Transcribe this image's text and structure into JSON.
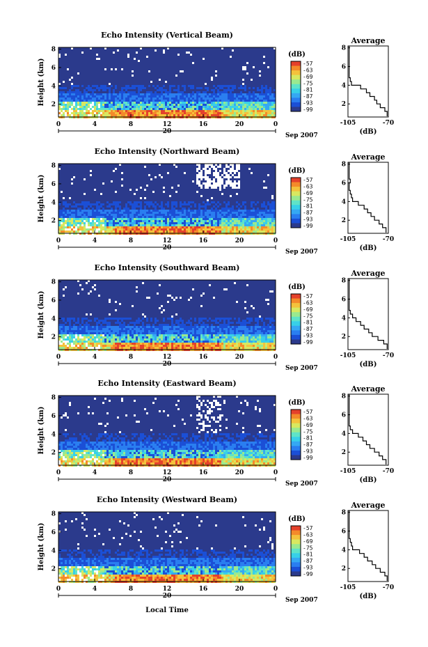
{
  "colors": {
    "background": "#2b3a8c",
    "scale": [
      "#2b3a8c",
      "#1b4fd6",
      "#2a7ef0",
      "#35a8f3",
      "#38d0e8",
      "#5fe3c8",
      "#9ae98f",
      "#d8e860",
      "#f4c23c",
      "#f48a2a",
      "#e4412b"
    ]
  },
  "x_axis": {
    "label": "Local Time",
    "ticks": [
      "0",
      "4",
      "8",
      "12",
      "16",
      "20",
      "0"
    ],
    "day_label": "20",
    "date_label": "Sep 2007"
  },
  "colorbar": {
    "unit": "(dB)",
    "labels": [
      "-57",
      "-63",
      "-69",
      "-75",
      "-81",
      "-87",
      "-93",
      "-99"
    ]
  },
  "profile": {
    "title": "Average",
    "xlabel": "(dB)",
    "xticks": [
      "-105",
      "-70"
    ],
    "yticks": [
      "2",
      "4",
      "6",
      "8"
    ]
  },
  "chart_data": [
    {
      "type": "heatmap",
      "title": "Echo Intensity (Vertical Beam)",
      "ylabel": "Height (km)",
      "ylim": [
        0.6,
        8.2
      ],
      "yticks": [
        2,
        4,
        6,
        8
      ],
      "xlim": [
        0,
        24
      ],
      "profile": {
        "type": "line",
        "xlim": [
          -105,
          -70
        ],
        "y": [
          0.8,
          1.2,
          1.6,
          2.0,
          2.4,
          2.8,
          3.2,
          3.6,
          4.0,
          4.4,
          4.8,
          5.2,
          5.6,
          6.0,
          6.4,
          6.8,
          7.2
        ],
        "x": [
          -71,
          -73,
          -77,
          -80,
          -82,
          -86,
          -89,
          -94,
          -102,
          -103,
          -104,
          -104,
          -104,
          -104,
          -104,
          -104,
          -104
        ]
      }
    },
    {
      "type": "heatmap",
      "title": "Echo Intensity (Northward Beam)",
      "ylabel": "Height (km)",
      "ylim": [
        0.6,
        8.2
      ],
      "yticks": [
        2,
        4,
        6,
        8
      ],
      "xlim": [
        0,
        24
      ],
      "profile": {
        "type": "line",
        "xlim": [
          -105,
          -70
        ],
        "y": [
          0.8,
          1.2,
          1.6,
          2.0,
          2.4,
          2.8,
          3.2,
          3.6,
          4.0,
          4.4,
          4.8,
          5.2,
          5.6,
          6.0,
          6.4,
          6.8,
          7.2
        ],
        "x": [
          -72,
          -75,
          -78,
          -82,
          -85,
          -88,
          -91,
          -96,
          -101,
          -102,
          -103,
          -104,
          -104,
          -103,
          -104,
          -104,
          -104
        ]
      }
    },
    {
      "type": "heatmap",
      "title": "Echo Intensity (Southward Beam)",
      "ylabel": "Height (km)",
      "ylim": [
        0.6,
        8.2
      ],
      "yticks": [
        2,
        4,
        6,
        8
      ],
      "xlim": [
        0,
        24
      ],
      "profile": {
        "type": "line",
        "xlim": [
          -105,
          -70
        ],
        "y": [
          0.8,
          1.2,
          1.6,
          2.0,
          2.4,
          2.8,
          3.2,
          3.6,
          4.0,
          4.4,
          4.8,
          5.2,
          5.6,
          6.0,
          6.4,
          6.8,
          7.2
        ],
        "x": [
          -71,
          -74,
          -79,
          -84,
          -87,
          -91,
          -94,
          -98,
          -101,
          -103,
          -104,
          -104,
          -104,
          -104,
          -104,
          -104,
          -104
        ]
      }
    },
    {
      "type": "heatmap",
      "title": "Echo Intensity (Eastward Beam)",
      "ylabel": "Height (km)",
      "ylim": [
        0.6,
        8.2
      ],
      "yticks": [
        2,
        4,
        6,
        8
      ],
      "xlim": [
        0,
        24
      ],
      "profile": {
        "type": "line",
        "xlim": [
          -105,
          -70
        ],
        "y": [
          0.8,
          1.2,
          1.6,
          2.0,
          2.4,
          2.8,
          3.2,
          3.6,
          4.0,
          4.4,
          4.8,
          5.2,
          5.6,
          6.0,
          6.4,
          6.8,
          7.2
        ],
        "x": [
          -72,
          -75,
          -78,
          -82,
          -86,
          -89,
          -92,
          -96,
          -101,
          -103,
          -104,
          -104,
          -104,
          -104,
          -104,
          -104,
          -104
        ]
      }
    },
    {
      "type": "heatmap",
      "title": "Echo Intensity (Westward Beam)",
      "ylabel": "Height (km)",
      "ylim": [
        0.6,
        8.2
      ],
      "yticks": [
        2,
        4,
        6,
        8
      ],
      "xlim": [
        0,
        24
      ],
      "profile": {
        "type": "line",
        "xlim": [
          -105,
          -70
        ],
        "y": [
          0.8,
          1.2,
          1.6,
          2.0,
          2.4,
          2.8,
          3.2,
          3.6,
          4.0,
          4.4,
          4.8,
          5.2,
          5.6,
          6.0,
          6.4,
          6.8,
          7.2
        ],
        "x": [
          -71,
          -73,
          -77,
          -81,
          -84,
          -88,
          -91,
          -95,
          -101,
          -102,
          -103,
          -104,
          -104,
          -104,
          -104,
          -104,
          -104
        ]
      }
    }
  ]
}
